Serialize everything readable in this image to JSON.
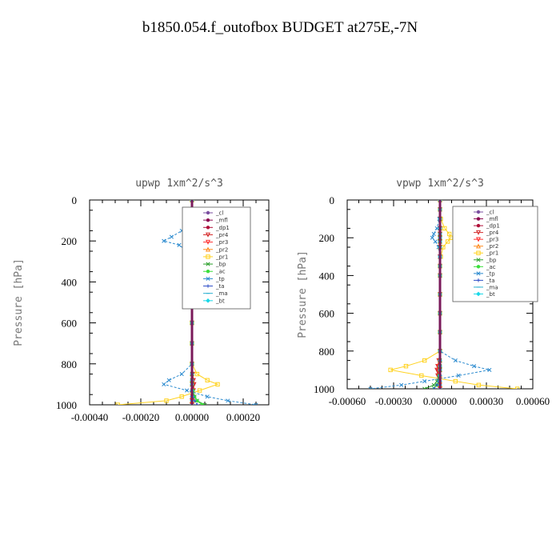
{
  "figure": {
    "title": "b1850.054.f_outofbox  BUDGET at275E,-7N"
  },
  "chart_data": [
    {
      "type": "line",
      "title": "upwp   1xm^2/s^3",
      "xlabel": "",
      "ylabel": "Pressure [hPa]",
      "xlim": [
        -0.0004,
        0.0003
      ],
      "ylim": [
        1000,
        0
      ],
      "xticks": [
        -0.0004,
        -0.0002,
        0.0,
        0.0002
      ],
      "xtick_labels": [
        "-0.00040",
        "-0.00020",
        "0.00000",
        "0.00020"
      ],
      "yticks": [
        0,
        200,
        400,
        600,
        800,
        1000
      ],
      "ytick_labels": [
        "0",
        "200",
        "400",
        "600",
        "800",
        "1000"
      ],
      "legend_position": "top-right",
      "pressure": [
        0,
        50,
        100,
        150,
        180,
        200,
        220,
        250,
        300,
        350,
        400,
        500,
        600,
        700,
        800,
        850,
        880,
        900,
        930,
        960,
        980,
        1000
      ],
      "series": [
        {
          "name": "_cl",
          "color": "#7b4fa0",
          "marker": "o",
          "values": [
            0,
            0,
            0,
            0,
            0,
            0,
            0,
            0,
            0,
            0,
            0,
            0,
            0,
            0,
            0,
            0,
            0,
            0,
            0,
            0,
            0,
            0
          ]
        },
        {
          "name": "_mfl",
          "color": "#8b0a50",
          "marker": "o",
          "values": [
            0,
            0,
            0,
            0,
            2e-06,
            3e-06,
            2e-06,
            0,
            0,
            0,
            0,
            0,
            0,
            0,
            0,
            0,
            0,
            0,
            0,
            0,
            0,
            0
          ]
        },
        {
          "name": "_dp1",
          "color": "#b0103a",
          "marker": "o",
          "values": [
            0,
            0,
            0,
            0,
            0,
            3e-06,
            2e-06,
            0,
            0,
            0,
            0,
            0,
            0,
            0,
            0,
            0,
            4e-06,
            6e-06,
            4e-06,
            2e-06,
            0,
            0
          ]
        },
        {
          "name": "_pr4",
          "color": "#d42a2a",
          "marker": "v",
          "values": [
            0,
            0,
            0,
            0,
            4e-06,
            6e-06,
            4e-06,
            0,
            0,
            0,
            0,
            0,
            0,
            0,
            0,
            3e-06,
            6e-06,
            8e-06,
            6e-06,
            3e-06,
            1e-06,
            0
          ]
        },
        {
          "name": "_pr3",
          "color": "#ff3030",
          "marker": "v",
          "values": [
            0,
            0,
            0,
            0,
            2e-06,
            4e-06,
            2e-06,
            0,
            0,
            0,
            0,
            0,
            0,
            0,
            0,
            2e-06,
            4e-06,
            4e-06,
            3e-06,
            2e-06,
            0,
            0
          ]
        },
        {
          "name": "_pr2",
          "color": "#ff8c20",
          "marker": "^",
          "values": [
            0,
            0,
            0,
            0,
            0,
            0,
            0,
            0,
            0,
            0,
            0,
            0,
            0,
            0,
            0,
            0,
            0,
            0,
            0,
            0,
            0,
            0
          ]
        },
        {
          "name": "_pr1",
          "color": "#ffd21f",
          "marker": "s",
          "values": [
            0,
            0,
            2e-06,
            1e-05,
            3e-05,
            4e-05,
            3e-05,
            1.5e-05,
            5e-06,
            0,
            0,
            0,
            0,
            0,
            0,
            2e-05,
            6e-05,
            0.0001,
            3e-05,
            -4e-05,
            -0.0001,
            -0.00029
          ]
        },
        {
          "name": "_bp",
          "color": "#2ea02e",
          "marker": "x",
          "values": [
            0,
            0,
            0,
            0,
            0,
            0,
            0,
            0,
            0,
            0,
            0,
            0,
            0,
            0,
            0,
            0,
            0,
            0,
            2e-06,
            1e-05,
            2e-05,
            5e-05
          ]
        },
        {
          "name": "_ac",
          "color": "#3adf3a",
          "marker": "o",
          "values": [
            0,
            0,
            0,
            0,
            0,
            0,
            0,
            0,
            0,
            0,
            0,
            0,
            0,
            0,
            0,
            0,
            0,
            0,
            4e-06,
            1e-05,
            2e-05,
            4e-05
          ]
        },
        {
          "name": "_tp",
          "color": "#2a8acf",
          "marker": "x",
          "values": [
            0,
            0,
            -5e-06,
            -4e-05,
            -8e-05,
            -0.00011,
            -5e-05,
            -2e-05,
            -8e-06,
            -1.5e-05,
            -5e-06,
            0,
            0,
            0,
            0,
            -4e-05,
            -9e-05,
            -0.00011,
            -2e-05,
            6e-05,
            0.00014,
            0.00025
          ]
        },
        {
          "name": "_ta",
          "color": "#3050c8",
          "marker": "+",
          "values": [
            0,
            0,
            0,
            0,
            0,
            0,
            0,
            0,
            0,
            0,
            0,
            0,
            0,
            0,
            0,
            0,
            0,
            0,
            0,
            5e-06,
            1e-05,
            2e-05
          ]
        },
        {
          "name": "_ma",
          "color": "#2ab0d0",
          "marker": "-",
          "values": [
            0,
            0,
            0,
            0,
            0,
            0,
            0,
            0,
            0,
            0,
            0,
            0,
            0,
            0,
            0,
            0,
            0,
            0,
            0,
            0,
            0,
            0
          ]
        },
        {
          "name": "_bt",
          "color": "#18d8e8",
          "marker": "D",
          "values": [
            0,
            0,
            0,
            0,
            0,
            0,
            0,
            0,
            0,
            0,
            0,
            0,
            0,
            0,
            0,
            0,
            0,
            0,
            0,
            0,
            0,
            0
          ]
        }
      ]
    },
    {
      "type": "line",
      "title": "vpwp   1xm^2/s^3",
      "xlabel": "",
      "ylabel": "Pressure [hPa]",
      "xlim": [
        -0.0006,
        0.0006
      ],
      "ylim": [
        1000,
        0
      ],
      "xticks": [
        -0.0006,
        -0.0003,
        0.0,
        0.0003,
        0.0006
      ],
      "xtick_labels": [
        "-0.00060",
        "-0.00030",
        "0.00000",
        "0.00030",
        "0.00060"
      ],
      "yticks": [
        0,
        200,
        400,
        600,
        800,
        1000
      ],
      "ytick_labels": [
        "0",
        "200",
        "400",
        "600",
        "800",
        "1000"
      ],
      "legend_position": "top-right",
      "pressure": [
        0,
        50,
        100,
        150,
        180,
        200,
        220,
        250,
        300,
        350,
        400,
        500,
        600,
        700,
        800,
        850,
        880,
        900,
        930,
        960,
        980,
        1000
      ],
      "series": [
        {
          "name": "_cl",
          "color": "#7b4fa0",
          "marker": "o",
          "values": [
            0,
            0,
            0,
            0,
            0,
            0,
            0,
            0,
            0,
            0,
            0,
            0,
            0,
            0,
            0,
            0,
            0,
            0,
            0,
            0,
            0,
            0
          ]
        },
        {
          "name": "_mfl",
          "color": "#8b0a50",
          "marker": "o",
          "values": [
            0,
            0,
            0,
            0,
            0,
            0,
            0,
            0,
            0,
            0,
            0,
            0,
            0,
            0,
            0,
            0,
            0,
            0,
            0,
            0,
            0,
            0
          ]
        },
        {
          "name": "_dp1",
          "color": "#b0103a",
          "marker": "o",
          "values": [
            0,
            0,
            0,
            0,
            0,
            0,
            0,
            0,
            0,
            0,
            0,
            0,
            0,
            0,
            0,
            -5e-06,
            -1e-05,
            -1.5e-05,
            -1e-05,
            -5e-06,
            0,
            0
          ]
        },
        {
          "name": "_pr4",
          "color": "#d42a2a",
          "marker": "v",
          "values": [
            0,
            0,
            0,
            0,
            0,
            0,
            0,
            0,
            0,
            0,
            0,
            0,
            0,
            0,
            0,
            -8e-06,
            -1.5e-05,
            -2e-05,
            -1.5e-05,
            -8e-06,
            -3e-06,
            0
          ]
        },
        {
          "name": "_pr3",
          "color": "#ff3030",
          "marker": "v",
          "values": [
            0,
            0,
            0,
            0,
            0,
            0,
            0,
            0,
            0,
            0,
            0,
            0,
            0,
            0,
            0,
            -5e-06,
            -1e-05,
            -1e-05,
            -8e-06,
            -5e-06,
            -2e-06,
            0
          ]
        },
        {
          "name": "_pr2",
          "color": "#ff8c20",
          "marker": "^",
          "values": [
            0,
            0,
            0,
            0,
            0,
            0,
            0,
            0,
            0,
            0,
            0,
            0,
            0,
            0,
            0,
            0,
            0,
            0,
            0,
            0,
            0,
            0
          ]
        },
        {
          "name": "_pr1",
          "color": "#ffd21f",
          "marker": "s",
          "values": [
            0,
            0,
            5e-06,
            3e-05,
            6e-05,
            7e-05,
            5e-05,
            2e-05,
            5e-06,
            0,
            0,
            0,
            0,
            0,
            0,
            -0.0001,
            -0.00022,
            -0.00032,
            -0.00012,
            0.0001,
            0.00025,
            0.0005
          ]
        },
        {
          "name": "_bp",
          "color": "#2ea02e",
          "marker": "x",
          "values": [
            0,
            0,
            0,
            0,
            0,
            0,
            0,
            0,
            0,
            0,
            0,
            0,
            0,
            0,
            0,
            0,
            0,
            0,
            -5e-06,
            -2e-05,
            -4e-05,
            -0.0001
          ]
        },
        {
          "name": "_ac",
          "color": "#3adf3a",
          "marker": "o",
          "values": [
            0,
            0,
            0,
            0,
            0,
            0,
            0,
            0,
            0,
            0,
            0,
            0,
            0,
            0,
            0,
            0,
            0,
            0,
            -5e-06,
            -1e-05,
            -2e-05,
            -4e-05
          ]
        },
        {
          "name": "_tp",
          "color": "#2a8acf",
          "marker": "x",
          "values": [
            0,
            0,
            -5e-06,
            -2e-05,
            -4e-05,
            -5e-05,
            -3e-05,
            -1e-05,
            0,
            0,
            0,
            0,
            0,
            0,
            0,
            0.0001,
            0.00022,
            0.00032,
            0.00012,
            -0.0001,
            -0.00025,
            -0.00045
          ]
        },
        {
          "name": "_ta",
          "color": "#3050c8",
          "marker": "+",
          "values": [
            0,
            0,
            0,
            0,
            0,
            0,
            0,
            0,
            0,
            0,
            0,
            0,
            0,
            0,
            0,
            0,
            0,
            0,
            -5e-06,
            -1e-05,
            -2e-05,
            -4e-05
          ]
        },
        {
          "name": "_ma",
          "color": "#2ab0d0",
          "marker": "-",
          "values": [
            0,
            0,
            0,
            0,
            0,
            0,
            0,
            0,
            0,
            0,
            0,
            0,
            0,
            0,
            0,
            0,
            0,
            0,
            0,
            0,
            0,
            0
          ]
        },
        {
          "name": "_bt",
          "color": "#18d8e8",
          "marker": "D",
          "values": [
            0,
            0,
            0,
            0,
            0,
            0,
            0,
            0,
            0,
            0,
            0,
            0,
            0,
            0,
            0,
            0,
            0,
            0,
            0,
            0,
            0,
            0
          ]
        }
      ]
    }
  ]
}
